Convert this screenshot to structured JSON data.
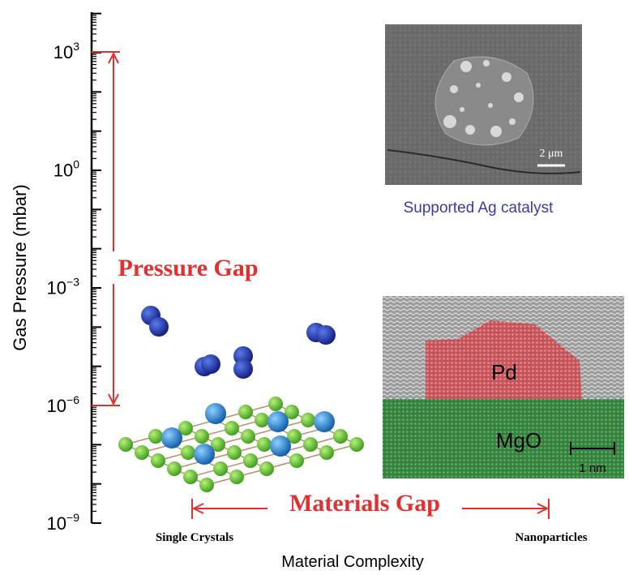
{
  "y_axis": {
    "label": "Gas Pressure (mbar)",
    "ticks": [
      {
        "base": "10",
        "exponent": "3"
      },
      {
        "base": "10",
        "exponent": "0"
      },
      {
        "base": "10",
        "exponent": "−3"
      },
      {
        "base": "10",
        "exponent": "−6"
      },
      {
        "base": "10",
        "exponent": "−9"
      }
    ]
  },
  "x_axis": {
    "label": "Material Complexity",
    "left": "Single Crystals",
    "right": "Nanoparticles"
  },
  "pressure_gap": "Pressure Gap",
  "materials_gap": "Materials Gap",
  "sem_inset": {
    "scale": "2 μm",
    "caption": "Supported Ag catalyst"
  },
  "tem_inset": {
    "top": "Pd",
    "bottom": "MgO",
    "scale": "1 nm"
  }
}
